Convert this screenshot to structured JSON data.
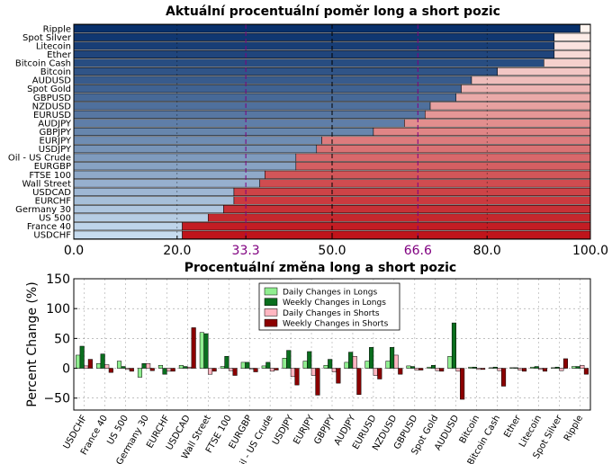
{
  "chart_data": [
    {
      "type": "bar",
      "orientation": "horizontal",
      "stacked": true,
      "title": "Aktuální procentuální poměr long a short pozic",
      "categories": [
        "Ripple",
        "Spot Silver",
        "Litecoin",
        "Ether",
        "Bitcoin Cash",
        "Bitcoin",
        "AUDUSD",
        "Spot Gold",
        "GBPUSD",
        "NZDUSD",
        "EURUSD",
        "AUDJPY",
        "GBPJPY",
        "EURJPY",
        "USDJPY",
        "Oil - US Crude",
        "EURGBP",
        "FTSE 100",
        "Wall Street",
        "USDCAD",
        "EURCHF",
        "Germany 30",
        "US 500",
        "France 40",
        "USDCHF"
      ],
      "long_values": [
        98,
        93,
        93,
        93,
        91,
        82,
        77,
        75,
        74,
        69,
        68,
        64,
        58,
        48,
        47,
        43,
        43,
        37,
        36,
        31,
        31,
        29,
        26,
        21,
        21
      ],
      "xlim": [
        0,
        100
      ],
      "xticks": [
        "0.0",
        "20.0",
        "33.3",
        "50.0",
        "66.6",
        "80.0",
        "100.0"
      ],
      "reference_lines": [
        33.3,
        50,
        66.6
      ],
      "grid": true
    },
    {
      "type": "bar",
      "title": "Procentuální změna long a short pozic",
      "ylabel": "Percent Change (%)",
      "ylim": [
        -70,
        150
      ],
      "yticks": [
        "150",
        "100",
        "50",
        "0",
        "−50"
      ],
      "categories": [
        "USDCHF",
        "France 40",
        "US 500",
        "Germany 30",
        "EURCHF",
        "USDCAD",
        "Wall Street",
        "FTSE 100",
        "EURGBP",
        "Oil - US Crude",
        "USDJPY",
        "EURJPY",
        "GBPJPY",
        "AUDJPY",
        "EURUSD",
        "NZDUSD",
        "GBPUSD",
        "Spot Gold",
        "AUDUSD",
        "Bitcoin",
        "Bitcoin Cash",
        "Ether",
        "Litecoin",
        "Spot Silver",
        "Ripple"
      ],
      "series": [
        {
          "name": "Daily Changes in Longs",
          "values": [
            22,
            8,
            12,
            -15,
            5,
            5,
            60,
            3,
            10,
            4,
            17,
            12,
            5,
            10,
            12,
            12,
            4,
            2,
            20,
            2,
            1,
            1,
            2,
            1,
            3
          ]
        },
        {
          "name": "Weekly Changes in Longs",
          "values": [
            37,
            24,
            3,
            8,
            -10,
            3,
            58,
            20,
            10,
            10,
            30,
            28,
            15,
            27,
            35,
            35,
            3,
            5,
            76,
            2,
            2,
            1,
            3,
            2,
            3
          ]
        },
        {
          "name": "Daily Changes in Shorts",
          "values": [
            4,
            6,
            -2,
            8,
            -5,
            2,
            -10,
            -4,
            -1,
            -5,
            -14,
            -12,
            -6,
            20,
            -12,
            22,
            -3,
            -4,
            -5,
            -2,
            -4,
            -3,
            -2,
            -4,
            5
          ]
        },
        {
          "name": "Weekly Changes in Shorts",
          "values": [
            15,
            -7,
            -5,
            -4,
            -5,
            68,
            -5,
            -12,
            -6,
            -3,
            -28,
            -45,
            -25,
            -44,
            -18,
            -10,
            -3,
            -5,
            -52,
            -2,
            -30,
            -5,
            -5,
            16,
            -10
          ]
        }
      ],
      "legend_position": "top-center",
      "grid": true
    }
  ],
  "colors": {
    "longs_top": "#08306b",
    "longs_bottom": "#c6dbef",
    "shorts_top": "#fff5f0",
    "shorts_bottom": "#c0141b",
    "daily_longs": "#90ee90",
    "weekly_longs": "#0a6e1e",
    "daily_shorts": "#ffb6c1",
    "weekly_shorts": "#8b0000",
    "reference_line": "#800080"
  }
}
